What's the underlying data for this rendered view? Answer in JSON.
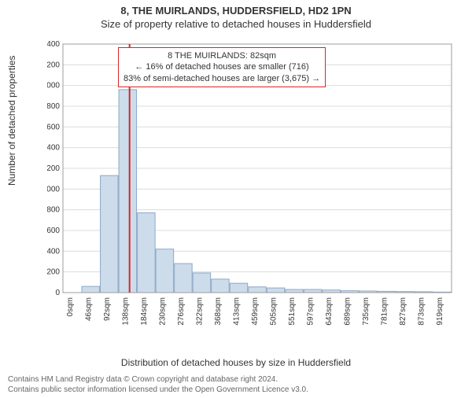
{
  "titles": {
    "line1": "8, THE MUIRLANDS, HUDDERSFIELD, HD2 1PN",
    "line2": "Size of property relative to detached houses in Huddersfield"
  },
  "axes": {
    "ylabel": "Number of detached properties",
    "xlabel": "Distribution of detached houses by size in Huddersfield",
    "ylim": [
      0,
      2400
    ],
    "ytick_step": 200,
    "yticks": [
      0,
      200,
      400,
      600,
      800,
      1000,
      1200,
      1400,
      1600,
      1800,
      2000,
      2200,
      2400
    ],
    "xticks": [
      "0sqm",
      "46sqm",
      "92sqm",
      "138sqm",
      "184sqm",
      "230sqm",
      "276sqm",
      "322sqm",
      "368sqm",
      "413sqm",
      "459sqm",
      "505sqm",
      "551sqm",
      "597sqm",
      "643sqm",
      "689sqm",
      "735sqm",
      "781sqm",
      "827sqm",
      "873sqm",
      "919sqm"
    ],
    "grid_color": "#dcdcdc",
    "axis_color": "#9c9c9c",
    "label_fontsize": 12,
    "tick_fontsize": 10
  },
  "histogram": {
    "type": "bar",
    "values": [
      0,
      60,
      1130,
      1960,
      770,
      420,
      280,
      190,
      130,
      90,
      55,
      45,
      30,
      30,
      25,
      18,
      15,
      12,
      10,
      8,
      5
    ],
    "bar_fill": "#cddceb",
    "bar_stroke": "#8ba8c8",
    "bar_stroke_width": 1
  },
  "marker": {
    "x_index": 3.6,
    "color": "#d62728",
    "width": 2
  },
  "annotation": {
    "lines": [
      "8 THE MUIRLANDS: 82sqm",
      "← 16% of detached houses are smaller (716)",
      "83% of semi-detached houses are larger (3,675) →"
    ],
    "border_color": "#d62728",
    "text_color": "#333333",
    "background": "#ffffff",
    "fontsize": 11
  },
  "footer": {
    "line1": "Contains HM Land Registry data © Crown copyright and database right 2024.",
    "line2": "Contains public sector information licensed under the Open Government Licence v3.0.",
    "color": "#666666",
    "fontsize": 10
  },
  "colors": {
    "background": "#ffffff",
    "title_color": "#333333"
  }
}
